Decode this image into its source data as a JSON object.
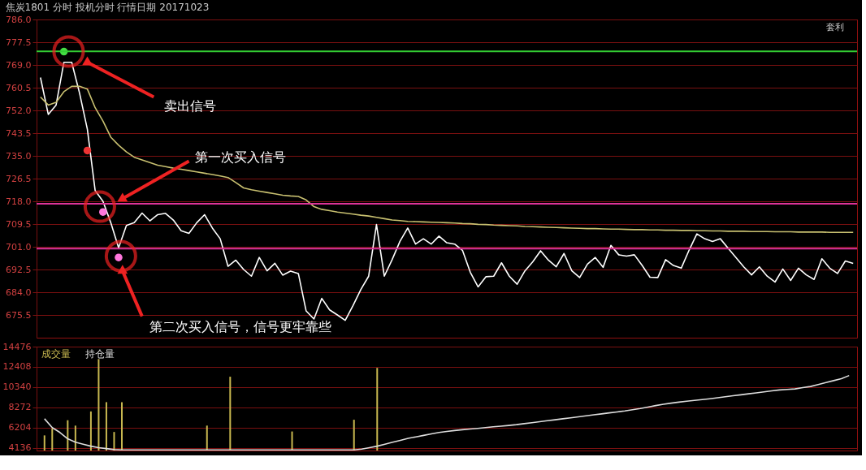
{
  "chart_data": [
    {
      "type": "line",
      "title": "焦炭1801  分时 投机分时 行情日期 20171023",
      "categories": [
        null,
        null,
        null,
        null,
        null,
        null,
        null,
        null,
        null,
        null,
        null,
        null,
        null,
        null,
        null,
        null,
        null,
        null,
        null,
        null,
        null,
        null,
        null,
        null,
        null,
        null,
        null,
        null,
        null,
        null,
        null,
        null,
        null,
        null,
        null,
        null,
        null,
        null,
        null,
        null,
        null,
        null,
        null,
        null,
        null,
        null,
        null,
        null,
        null,
        null,
        null,
        null,
        null,
        null,
        null,
        null,
        null,
        null,
        null,
        null,
        null,
        null,
        null,
        null,
        null,
        null,
        null,
        null,
        null,
        null,
        null,
        null,
        null,
        null,
        null,
        null,
        null,
        null,
        null,
        null,
        null,
        null,
        null,
        null,
        null,
        null,
        null,
        null,
        null,
        null,
        null,
        null,
        null,
        null,
        null,
        null,
        null,
        null,
        null,
        null,
        null,
        null,
        null,
        null,
        null
      ],
      "series": [
        {
          "color": "#ffffff",
          "values": [
            764.3,
            750.5,
            754,
            770,
            770,
            758.5,
            745,
            722,
            718,
            710,
            700.6,
            709,
            710,
            713.6,
            710.7,
            713,
            713.5,
            711,
            707,
            706,
            710,
            713,
            708,
            704,
            693.7,
            696,
            692.5,
            690,
            697,
            692,
            694.8,
            690.4,
            691.9,
            691,
            677,
            674,
            681.7,
            677.4,
            675.5,
            673.5,
            679,
            685,
            690,
            709.3,
            690,
            696.2,
            703,
            708,
            702,
            704,
            702,
            705,
            702.5,
            702,
            699.7,
            691.5,
            686,
            689.8,
            690,
            695,
            690,
            687,
            692,
            695.4,
            699.5,
            696,
            693.5,
            698.5,
            692,
            689.5,
            694.5,
            697,
            693.3,
            701.5,
            698,
            697.5,
            698,
            694,
            689.6,
            689.5,
            696.2,
            694,
            693,
            699.7,
            705.8,
            704,
            703,
            704,
            700.5,
            697,
            693.5,
            690.5,
            693.5,
            690,
            687.8,
            692.7,
            688.4,
            693,
            690.5,
            688.8,
            696.5,
            693,
            691,
            695.7,
            694.8
          ]
        },
        {
          "color": "#c8c070",
          "values": [
            757,
            754,
            755,
            759,
            761,
            761,
            760,
            753,
            748,
            742,
            739,
            736.5,
            734.5,
            733.5,
            732.5,
            731.5,
            731,
            730.4,
            730,
            729.5,
            729,
            728.5,
            728,
            727.5,
            726.9,
            725,
            723,
            722.3,
            721.8,
            721.3,
            720.8,
            720.3,
            720,
            719.8,
            718.5,
            716,
            715,
            714.5,
            714,
            713.6,
            713.2,
            712.8,
            712.5,
            712,
            711.5,
            711,
            710.8,
            710.5,
            710.4,
            710.3,
            710.2,
            710.1,
            710,
            709.9,
            709.7,
            709.6,
            709.4,
            709.3,
            709.1,
            709,
            708.9,
            708.8,
            708.6,
            708.5,
            708.4,
            708.3,
            708.2,
            708.1,
            708,
            707.9,
            707.8,
            707.8,
            707.7,
            707.6,
            707.6,
            707.5,
            707.4,
            707.4,
            707.3,
            707.3,
            707.2,
            707.2,
            707.1,
            707.1,
            707,
            707,
            706.9,
            706.9,
            706.8,
            706.8,
            706.8,
            706.7,
            706.7,
            706.7,
            706.6,
            706.6,
            706.6,
            706.5,
            706.5,
            706.5,
            706.5,
            706.4,
            706.4,
            706.4,
            706.4
          ]
        },
        {
          "type": "scatter",
          "color": "#44dd44",
          "values": [
            null,
            null,
            null,
            774,
            null,
            null,
            null,
            null,
            null,
            null,
            null,
            null,
            null,
            null,
            null,
            null,
            null,
            null,
            null,
            null,
            null,
            null,
            null,
            null,
            null,
            null,
            null,
            null,
            null,
            null,
            null,
            null,
            null,
            null,
            null,
            null,
            null,
            null,
            null,
            null,
            null,
            null,
            null,
            null,
            null,
            null,
            null,
            null,
            null,
            null,
            null,
            null,
            null,
            null,
            null,
            null,
            null,
            null,
            null,
            null,
            null,
            null,
            null,
            null,
            null,
            null,
            null,
            null,
            null,
            null,
            null,
            null,
            null,
            null,
            null,
            null,
            null,
            null,
            null,
            null,
            null,
            null,
            null,
            null,
            null,
            null,
            null,
            null,
            null,
            null,
            null,
            null,
            null,
            null,
            null,
            null,
            null,
            null,
            null,
            null,
            null,
            null,
            null,
            null,
            null
          ]
        },
        {
          "type": "scatter",
          "color": "#ee3333",
          "values": [
            null,
            null,
            null,
            null,
            null,
            null,
            737,
            null,
            null,
            null,
            null,
            null,
            null,
            null,
            null,
            null,
            null,
            null,
            null,
            null,
            null,
            null,
            null,
            null,
            null,
            null,
            null,
            null,
            null,
            null,
            null,
            null,
            null,
            null,
            null,
            null,
            null,
            null,
            null,
            null,
            null,
            null,
            null,
            null,
            null,
            null,
            null,
            null,
            null,
            null,
            null,
            null,
            null,
            null,
            null,
            null,
            null,
            null,
            null,
            null,
            null,
            null,
            null,
            null,
            null,
            null,
            null,
            null,
            null,
            null,
            null,
            null,
            null,
            null,
            null,
            null,
            null,
            null,
            null,
            null,
            null,
            null,
            null,
            null,
            null,
            null,
            null,
            null,
            null,
            null,
            null,
            null,
            null,
            null,
            null,
            null,
            null,
            null,
            null,
            null,
            null,
            null,
            null,
            null,
            null
          ]
        },
        {
          "type": "scatter",
          "color": "#ff77dd",
          "values": [
            null,
            null,
            null,
            null,
            null,
            null,
            null,
            null,
            714,
            null,
            697,
            null,
            null,
            null,
            null,
            null,
            null,
            null,
            null,
            null,
            null,
            null,
            null,
            null,
            null,
            null,
            null,
            null,
            null,
            null,
            null,
            null,
            null,
            null,
            null,
            null,
            null,
            null,
            null,
            null,
            null,
            null,
            null,
            null,
            null,
            null,
            null,
            null,
            null,
            null,
            null,
            null,
            null,
            null,
            null,
            null,
            null,
            null,
            null,
            null,
            null,
            null,
            null,
            null,
            null,
            null,
            null,
            null,
            null,
            null,
            null,
            null,
            null,
            null,
            null,
            null,
            null,
            null,
            null,
            null,
            null,
            null,
            null,
            null,
            null,
            null,
            null,
            null,
            null,
            null,
            null,
            null,
            null,
            null,
            null,
            null,
            null,
            null,
            null,
            null,
            null,
            null,
            null,
            null,
            null
          ]
        }
      ],
      "ylim": [
        667,
        786
      ],
      "yticks": [
        {
          "value": 675.5,
          "label": "675.5"
        },
        {
          "value": 684,
          "label": "684.0"
        },
        {
          "value": 692.5,
          "label": "692.5"
        },
        {
          "value": 701,
          "label": "701.0"
        },
        {
          "value": 709.5,
          "label": "709.5"
        },
        {
          "value": 718,
          "label": "718.0"
        },
        {
          "value": 726.5,
          "label": "726.5"
        },
        {
          "value": 735,
          "label": "735.0"
        },
        {
          "value": 743.5,
          "label": "743.5"
        },
        {
          "value": 752,
          "label": "752.0"
        },
        {
          "value": 760.5,
          "label": "760.5"
        },
        {
          "value": 769,
          "label": "769.0"
        },
        {
          "value": 777.5,
          "label": "777.5"
        },
        {
          "value": 786,
          "label": "786.0"
        }
      ],
      "grid": "y",
      "tick_labels": "y",
      "ref_lines": [
        {
          "axis": "y",
          "value": 774.1,
          "color": "#33cc33"
        },
        {
          "axis": "y",
          "value": 717.1,
          "color": "#dd3399"
        },
        {
          "axis": "y",
          "value": 700.3,
          "color": "#dd3399"
        }
      ],
      "annotations": [
        "卖出信号",
        "第一次买入信号",
        "第二次买入信号，信号更牢靠些",
        "套利"
      ]
    },
    {
      "type": "bar",
      "categories": [
        null,
        null,
        null,
        null,
        null,
        null,
        null,
        null,
        null,
        null,
        null,
        null,
        null,
        null,
        null,
        null,
        null,
        null,
        null,
        null,
        null,
        null,
        null,
        null,
        null,
        null,
        null,
        null,
        null,
        null,
        null,
        null,
        null,
        null,
        null,
        null,
        null,
        null,
        null,
        null,
        null,
        null,
        null,
        null,
        null,
        null,
        null,
        null,
        null,
        null,
        null,
        null,
        null,
        null,
        null,
        null,
        null,
        null,
        null,
        null,
        null,
        null,
        null,
        null,
        null,
        null,
        null,
        null,
        null,
        null,
        null,
        null,
        null,
        null,
        null,
        null,
        null,
        null,
        null,
        null,
        null,
        null,
        null,
        null,
        null,
        null,
        null,
        null,
        null,
        null,
        null,
        null,
        null,
        null,
        null,
        null,
        null,
        null,
        null,
        null,
        null,
        null,
        null,
        null,
        null
      ],
      "series": [
        {
          "name": "成交量",
          "color": "#c8b850",
          "values": [
            5400,
            6100,
            null,
            6950,
            6400,
            null,
            7850,
            13200,
            8800,
            5750,
            8800,
            null,
            null,
            null,
            null,
            null,
            null,
            null,
            null,
            null,
            null,
            6400,
            null,
            null,
            11400,
            null,
            null,
            null,
            null,
            null,
            null,
            null,
            5800,
            null,
            null,
            null,
            null,
            null,
            null,
            null,
            7000,
            null,
            null,
            12300,
            null,
            null,
            null,
            null,
            null,
            null,
            null,
            null,
            null,
            null,
            null,
            null,
            null,
            null,
            null,
            null,
            null,
            null,
            null,
            null,
            null,
            null,
            null,
            null,
            null,
            null,
            null,
            null,
            null,
            null,
            null,
            null,
            null,
            null,
            null,
            null,
            null,
            null,
            null,
            null,
            null,
            null,
            null,
            null,
            null,
            null,
            null,
            null,
            null,
            null,
            null,
            null,
            null,
            null,
            null,
            null,
            null,
            null,
            null,
            null,
            null
          ]
        },
        {
          "name": "持仓量",
          "type": "line",
          "color": "#dddddd",
          "values": [
            7100,
            6200,
            5700,
            5050,
            4700,
            4500,
            4300,
            4150,
            4050,
            3950,
            3920,
            3920,
            3920,
            3920,
            3920,
            3920,
            3920,
            3920,
            3920,
            3920,
            3920,
            3920,
            3920,
            3920,
            3920,
            3920,
            3920,
            3920,
            3920,
            3920,
            3920,
            3920,
            3920,
            3920,
            3920,
            3920,
            3920,
            3920,
            3920,
            3920,
            3920,
            4000,
            4150,
            4300,
            4500,
            4700,
            4900,
            5100,
            5250,
            5400,
            5550,
            5700,
            5800,
            5900,
            5980,
            6050,
            6120,
            6200,
            6280,
            6350,
            6420,
            6500,
            6600,
            6700,
            6800,
            6900,
            7000,
            7100,
            7200,
            7300,
            7400,
            7500,
            7600,
            7700,
            7800,
            7900,
            8020,
            8150,
            8300,
            8450,
            8580,
            8700,
            8800,
            8900,
            8980,
            9060,
            9150,
            9250,
            9350,
            9450,
            9550,
            9650,
            9750,
            9850,
            9950,
            10050,
            10100,
            10150,
            10280,
            10400,
            10600,
            10800,
            11000,
            11200,
            11520
          ]
        }
      ],
      "ylim": [
        3855,
        14476
      ],
      "yticks": [
        {
          "value": 4136,
          "label": "4136"
        },
        {
          "value": 6204,
          "label": "6204"
        },
        {
          "value": 8272,
          "label": "8272"
        },
        10340,
        12408,
        14476
      ],
      "grid": "y",
      "tick_labels": "y"
    }
  ]
}
